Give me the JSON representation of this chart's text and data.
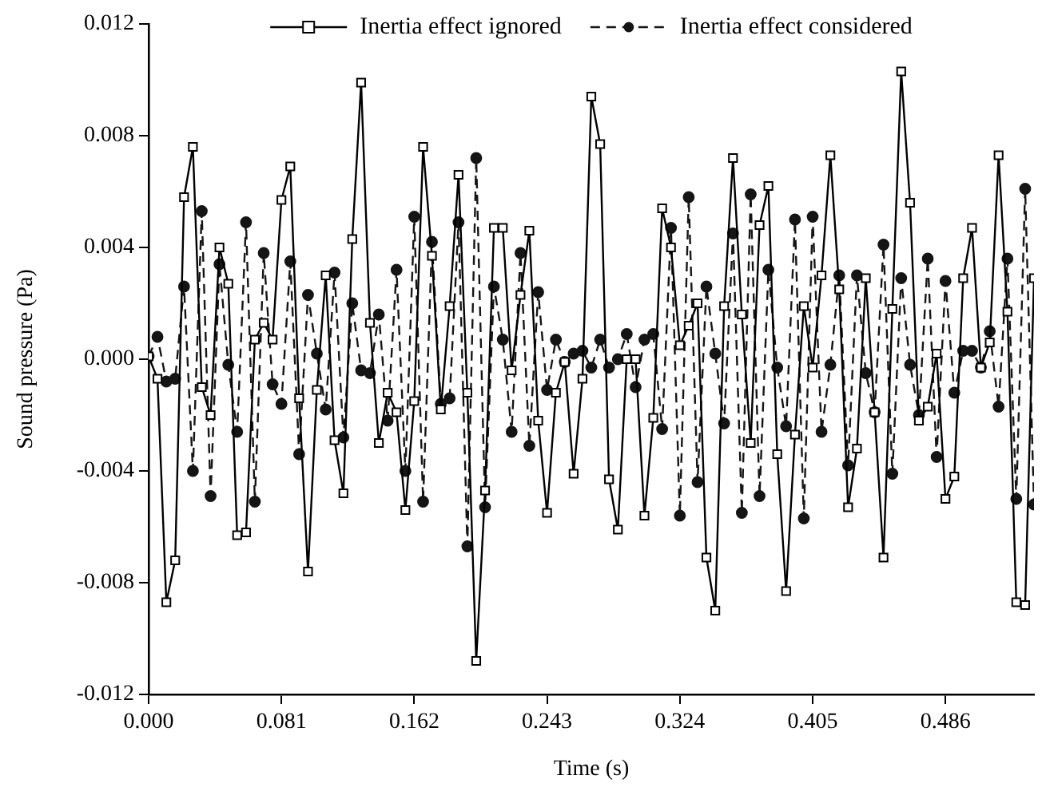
{
  "chart_data": {
    "type": "line",
    "xlabel": "Time (s)",
    "ylabel": "Sound pressure (Pa)",
    "legend": "top",
    "grid": false,
    "xlim": [
      0,
      0.54
    ],
    "ylim": [
      -0.012,
      0.012
    ],
    "xticks": [
      {
        "value": 0,
        "label": "0.000"
      },
      {
        "value": 0.081,
        "label": "0.081"
      },
      {
        "value": 0.162,
        "label": "0.162"
      },
      {
        "value": 0.243,
        "label": "0.243"
      },
      {
        "value": 0.324,
        "label": "0.324"
      },
      {
        "value": 0.405,
        "label": "0.405"
      },
      {
        "value": 0.486,
        "label": "0.486"
      }
    ],
    "yticks": [
      {
        "value": -0.012,
        "label": "-0.012"
      },
      {
        "value": -0.008,
        "label": "-0.008"
      },
      {
        "value": -0.004,
        "label": "-0.004"
      },
      {
        "value": 0,
        "label": "0.000"
      },
      {
        "value": 0.004,
        "label": "0.004"
      },
      {
        "value": 0.008,
        "label": "0.008"
      },
      {
        "value": 0.012,
        "label": "0.012"
      }
    ],
    "x": [
      0,
      0.0054,
      0.0108,
      0.0162,
      0.0216,
      0.027,
      0.0324,
      0.0378,
      0.0432,
      0.0486,
      0.054,
      0.0594,
      0.0648,
      0.0702,
      0.0756,
      0.081,
      0.0864,
      0.0918,
      0.0972,
      0.1026,
      0.108,
      0.1134,
      0.1188,
      0.1242,
      0.1296,
      0.135,
      0.1404,
      0.1458,
      0.1512,
      0.1566,
      0.162,
      0.1674,
      0.1728,
      0.1782,
      0.1836,
      0.189,
      0.1944,
      0.1998,
      0.2052,
      0.2106,
      0.216,
      0.2214,
      0.2268,
      0.2322,
      0.2376,
      0.243,
      0.2484,
      0.2538,
      0.2592,
      0.2646,
      0.27,
      0.2754,
      0.2808,
      0.2862,
      0.2916,
      0.297,
      0.3024,
      0.3078,
      0.3132,
      0.3186,
      0.324,
      0.3294,
      0.3348,
      0.3402,
      0.3456,
      0.351,
      0.3564,
      0.3618,
      0.3672,
      0.3726,
      0.378,
      0.3834,
      0.3888,
      0.3942,
      0.3996,
      0.405,
      0.4104,
      0.4158,
      0.4212,
      0.4266,
      0.432,
      0.4374,
      0.4428,
      0.4482,
      0.4536,
      0.459,
      0.4644,
      0.4698,
      0.4752,
      0.4806,
      0.486,
      0.4914,
      0.4968,
      0.5022,
      0.5076,
      0.513,
      0.5184,
      0.5238,
      0.5292,
      0.5346,
      0.54
    ],
    "series": [
      {
        "name": "Inertia effect ignored",
        "color": "#000000",
        "marker": "square",
        "line_style": "solid",
        "values": [
          0.0001,
          -0.0007,
          -0.0087,
          -0.0072,
          0.0058,
          0.0076,
          -0.001,
          -0.002,
          0.004,
          0.0027,
          -0.0063,
          -0.0062,
          0.0007,
          0.0013,
          0.0007,
          0.0057,
          0.0069,
          -0.0014,
          -0.0076,
          -0.0011,
          0.003,
          -0.0029,
          -0.0048,
          0.0043,
          0.0099,
          0.0013,
          -0.003,
          -0.0012,
          -0.0019,
          -0.0054,
          -0.0015,
          0.0076,
          0.0037,
          -0.0018,
          0.0019,
          0.0066,
          -0.0012,
          -0.0108,
          -0.0047,
          0.0047,
          0.0047,
          -0.0004,
          0.0023,
          0.0046,
          -0.0022,
          -0.0055,
          -0.0012,
          -0.0001,
          -0.0041,
          -0.0007,
          0.0094,
          0.0077,
          -0.0043,
          -0.0061,
          0,
          0,
          -0.0056,
          -0.0021,
          0.0054,
          0.004,
          0.0005,
          0.0012,
          0.002,
          -0.0071,
          -0.009,
          0.0019,
          0.0072,
          0.0016,
          -0.003,
          0.0048,
          0.0062,
          -0.0034,
          -0.0083,
          -0.0027,
          0.0019,
          -0.0003,
          0.003,
          0.0073,
          0.0025,
          -0.0053,
          -0.0032,
          0.0029,
          -0.0019,
          -0.0071,
          0.0018,
          0.0103,
          0.0056,
          -0.0022,
          -0.0017,
          0.0002,
          -0.005,
          -0.0042,
          0.0029,
          0.0047,
          -0.0003,
          0.0006,
          0.0073,
          0.0017,
          -0.0087,
          -0.0088,
          0.0029
        ]
      },
      {
        "name": "Inertia effect considered",
        "color": "#151515",
        "marker": "circle",
        "line_style": "dashed",
        "values": [
          0.0001,
          0.0008,
          -0.0008,
          -0.0007,
          0.0026,
          -0.004,
          0.0053,
          -0.0049,
          0.0034,
          -0.0002,
          -0.0026,
          0.0049,
          -0.0051,
          0.0038,
          -0.0009,
          -0.0016,
          0.0035,
          -0.0034,
          0.0023,
          0.0002,
          -0.0018,
          0.0031,
          -0.0028,
          0.002,
          -0.0004,
          -0.0005,
          0.0016,
          -0.0022,
          0.0032,
          -0.004,
          0.0051,
          -0.0051,
          0.0042,
          -0.0016,
          -0.0014,
          0.0049,
          -0.0067,
          0.0072,
          -0.0053,
          0.0026,
          0.0007,
          -0.0026,
          0.0038,
          -0.0031,
          0.0024,
          -0.0011,
          0.0007,
          -0.0001,
          0.0002,
          0.0003,
          -0.0003,
          0.0007,
          -0.0003,
          0,
          0.0009,
          -0.001,
          0.0007,
          0.0009,
          -0.0025,
          0.0047,
          -0.0056,
          0.0058,
          -0.0044,
          0.0026,
          0.0002,
          -0.0023,
          0.0045,
          -0.0055,
          0.0059,
          -0.0049,
          0.0032,
          -0.0003,
          -0.0024,
          0.005,
          -0.0057,
          0.0051,
          -0.0026,
          -0.0002,
          0.003,
          -0.0038,
          0.003,
          -0.0005,
          -0.0019,
          0.0041,
          -0.0041,
          0.0029,
          -0.0002,
          -0.002,
          0.0036,
          -0.0035,
          0.0028,
          -0.0012,
          0.0003,
          0.0003,
          -0.0003,
          0.001,
          -0.0017,
          0.0036,
          -0.005,
          0.0061,
          -0.0052
        ]
      }
    ]
  }
}
